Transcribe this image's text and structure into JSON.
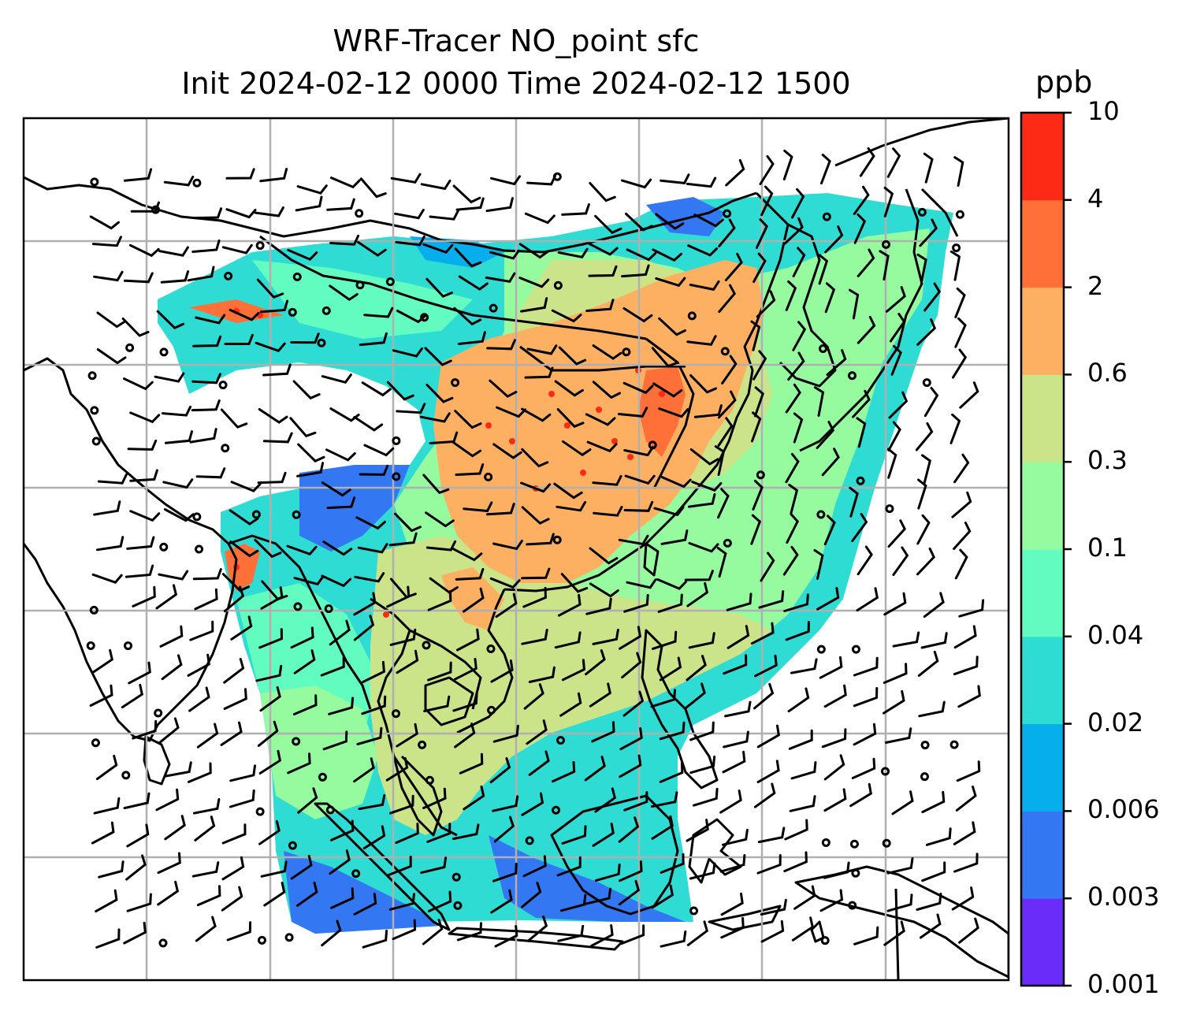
{
  "title_line1": "WRF-Tracer NO_point sfc",
  "title_line2": "Init 2024-02-12 0000 Time 2024-02-12 1500",
  "colorbar": {
    "unit": "ppb",
    "levels": [
      "0.001",
      "0.003",
      "0.006",
      "0.02",
      "0.04",
      "0.1",
      "0.3",
      "0.6",
      "2",
      "4",
      "10"
    ],
    "colors": [
      "#6a2cf8",
      "#3378f2",
      "#06aeec",
      "#2fdcd4",
      "#62fcc0",
      "#95fb9e",
      "#cbe389",
      "#fdb062",
      "#fe7038",
      "#fd2a15"
    ]
  },
  "map": {
    "gridlines": true,
    "background": "#ffffff",
    "land_outline_color": "#000000",
    "grid_color": "#b0b0b0"
  }
}
